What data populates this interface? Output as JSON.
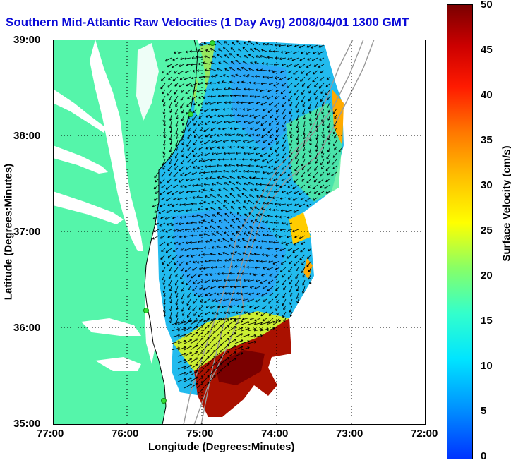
{
  "title": "Southern Mid-Atlantic Raw Velocities (1 Day Avg) 2008/04/01 1300 GMT",
  "axes": {
    "xlabel": "Longitude (Degrees:Minutes)",
    "ylabel": "Latitude (Degrees:Minutes)",
    "xticks": [
      "77:00",
      "76:00",
      "75:00",
      "74:00",
      "73:00",
      "72:00"
    ],
    "yticks": [
      "39:00",
      "38:00",
      "37:00",
      "36:00",
      "35:00"
    ]
  },
  "colorbar": {
    "label": "Surface Velocity (cm/s)",
    "ticks": [
      "50",
      "45",
      "40",
      "35",
      "30",
      "25",
      "20",
      "15",
      "10",
      "5",
      "0"
    ],
    "min": 0,
    "max": 50
  },
  "colors": {
    "title": "#0a0ad8",
    "land": "#55f5aa",
    "grid": "#000000",
    "vectors": "#000000",
    "stations": "#33dd33"
  }
}
